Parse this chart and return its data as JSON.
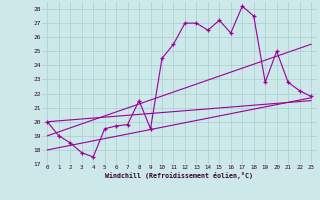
{
  "xlabel": "Windchill (Refroidissement éolien,°C)",
  "bg_color": "#cce8e8",
  "grid_color": "#aacece",
  "line_color": "#990099",
  "xlim": [
    -0.5,
    23.5
  ],
  "ylim": [
    17,
    28.5
  ],
  "yticks": [
    17,
    18,
    19,
    20,
    21,
    22,
    23,
    24,
    25,
    26,
    27,
    28
  ],
  "xticks": [
    0,
    1,
    2,
    3,
    4,
    5,
    6,
    7,
    8,
    9,
    10,
    11,
    12,
    13,
    14,
    15,
    16,
    17,
    18,
    19,
    20,
    21,
    22,
    23
  ],
  "series": {
    "line1_x": [
      0,
      1,
      2,
      3,
      4,
      5,
      6,
      7,
      8,
      9,
      10,
      11,
      12,
      13,
      14,
      15,
      16,
      17,
      18,
      19,
      20,
      21,
      22,
      23
    ],
    "line1_y": [
      20.0,
      19.0,
      18.5,
      17.8,
      17.5,
      19.5,
      19.7,
      19.8,
      21.5,
      19.5,
      24.5,
      25.5,
      27.0,
      27.0,
      26.5,
      27.2,
      26.3,
      28.2,
      27.5,
      22.8,
      25.0,
      22.8,
      22.2,
      21.8
    ],
    "line2_x": [
      0,
      23
    ],
    "line2_y": [
      19.0,
      25.5
    ],
    "line3_x": [
      0,
      23
    ],
    "line3_y": [
      18.0,
      21.7
    ],
    "line4_x": [
      0,
      23
    ],
    "line4_y": [
      20.0,
      21.5
    ]
  }
}
